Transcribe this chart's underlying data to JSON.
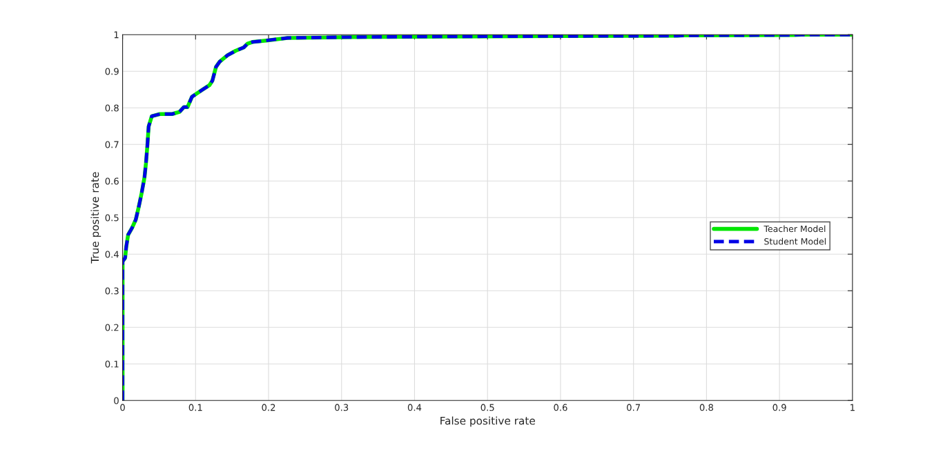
{
  "chart_data": {
    "type": "line",
    "xlabel": "False positive rate",
    "ylabel": "True positive rate",
    "x": [
      0,
      0,
      0.0035,
      0.005,
      0.0076,
      0.013,
      0.018,
      0.022,
      0.026,
      0.03,
      0.032,
      0.034,
      0.0357,
      0.04,
      0.051,
      0.068,
      0.078,
      0.084,
      0.089,
      0.095,
      0.109,
      0.119,
      0.123,
      0.128,
      0.133,
      0.144,
      0.155,
      0.166,
      0.171,
      0.178,
      0.197,
      0.226,
      0.3,
      0.45,
      0.6,
      0.76,
      0.77,
      0.92,
      0.93,
      1.0
    ],
    "series": [
      {
        "name": "Teacher Model",
        "color": "#00e600",
        "line_style": "solid",
        "values": [
          0,
          0.38,
          0.39,
          0.42,
          0.453,
          0.472,
          0.494,
          0.528,
          0.566,
          0.61,
          0.648,
          0.698,
          0.749,
          0.777,
          0.783,
          0.783,
          0.789,
          0.802,
          0.802,
          0.83,
          0.849,
          0.862,
          0.874,
          0.912,
          0.926,
          0.944,
          0.956,
          0.965,
          0.975,
          0.98,
          0.984,
          0.991,
          0.993,
          0.995,
          0.996,
          0.997,
          0.998,
          0.999,
          1.0,
          1.0
        ]
      },
      {
        "name": "Student Model",
        "color": "#0000e6",
        "line_style": "dashed",
        "values": [
          0,
          0.38,
          0.39,
          0.42,
          0.453,
          0.472,
          0.494,
          0.528,
          0.566,
          0.61,
          0.648,
          0.698,
          0.749,
          0.777,
          0.783,
          0.783,
          0.789,
          0.802,
          0.802,
          0.83,
          0.849,
          0.862,
          0.874,
          0.912,
          0.926,
          0.944,
          0.956,
          0.965,
          0.975,
          0.98,
          0.984,
          0.991,
          0.993,
          0.995,
          0.996,
          0.997,
          0.998,
          0.999,
          1.0,
          1.0
        ]
      }
    ],
    "xlim": [
      0,
      1
    ],
    "ylim": [
      0,
      1
    ],
    "xticks": [
      0,
      0.1,
      0.2,
      0.3,
      0.4,
      0.5,
      0.6,
      0.7,
      0.8,
      0.9,
      1
    ],
    "yticks": [
      0,
      0.1,
      0.2,
      0.3,
      0.4,
      0.5,
      0.6,
      0.7,
      0.8,
      0.9,
      1
    ],
    "grid": true,
    "legend": "right",
    "marker": "none"
  }
}
